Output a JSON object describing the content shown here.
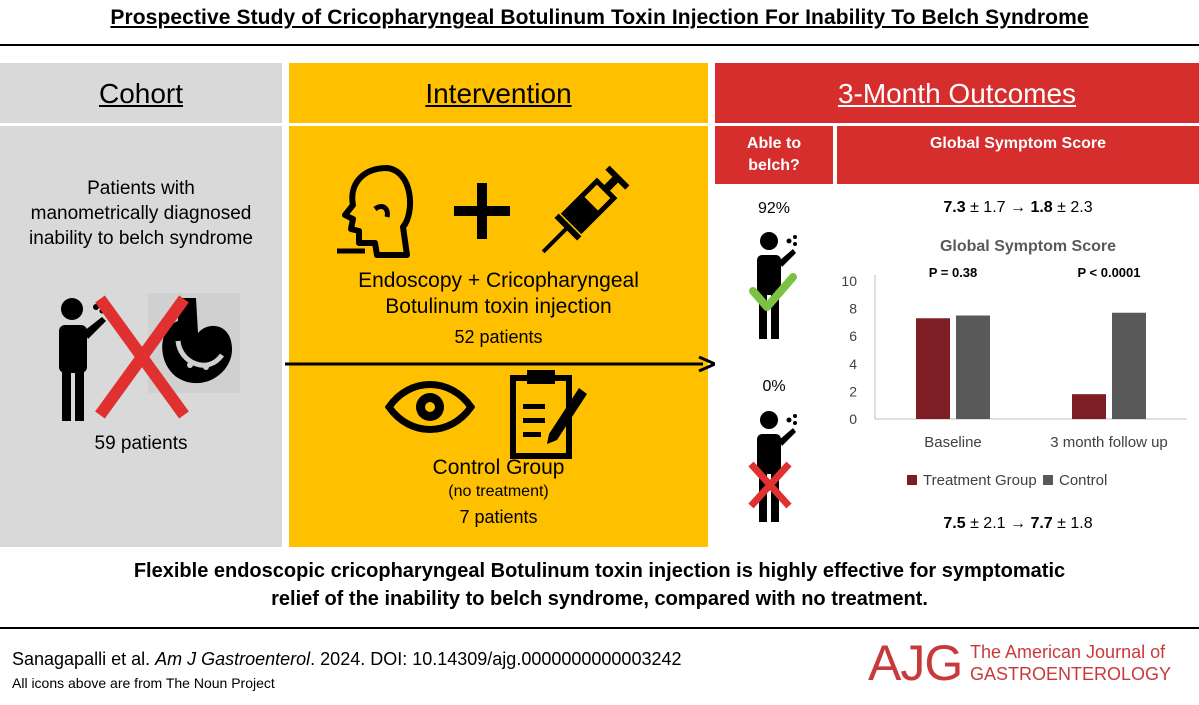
{
  "title": "Prospective Study of Cricopharyngeal Botulinum Toxin Injection For Inability To Belch Syndrome",
  "colors": {
    "cohort_bg": "#d9d9d9",
    "intervention_bg": "#ffc000",
    "outcomes_bg": "#d62d2d",
    "treatment": "#7f1d24",
    "control": "#595959",
    "check": "#7cc142",
    "cross": "#e03030"
  },
  "cohort": {
    "header": "Cohort",
    "desc_lines": [
      "Patients with",
      "manometrically diagnosed",
      "inability to belch syndrome"
    ],
    "count": "59 patients",
    "icons": [
      "belching-person-icon",
      "stomach-icon",
      "red-cross-icon"
    ]
  },
  "intervention": {
    "header": "Intervention",
    "treatment_lines": [
      "Endoscopy + Cricopharyngeal",
      "Botulinum toxin injection"
    ],
    "treatment_count": "52 patients",
    "control_label": "Control Group",
    "control_sub": "(no treatment)",
    "control_count": "7 patients",
    "icons": [
      "head-profile-icon",
      "plus-icon",
      "syringe-icon",
      "eye-icon",
      "clipboard-icon"
    ]
  },
  "outcomes": {
    "header": "3-Month Outcomes",
    "able_header_lines": [
      "Able to",
      "belch?"
    ],
    "gss_header": "Global Symptom Score",
    "treatment_pct": "92%",
    "control_pct": "0%",
    "treatment_score": {
      "before": "7.3",
      "before_sd": " ± 1.7 ",
      "after": "1.8",
      "after_sd": " ± 2.3"
    },
    "control_score": {
      "before": "7.5",
      "before_sd": " ± 2.1 ",
      "after": "7.7",
      "after_sd": " ± 1.8"
    }
  },
  "chart_data": {
    "type": "bar",
    "title": "Global Symptom Score",
    "categories": [
      "Baseline",
      "3 month follow up"
    ],
    "series": [
      {
        "name": "Treatment Group",
        "values": [
          7.3,
          1.8
        ]
      },
      {
        "name": "Control",
        "values": [
          7.5,
          7.7
        ]
      }
    ],
    "ylim": [
      0,
      10
    ],
    "yticks": [
      "0",
      "2",
      "4",
      "6",
      "8",
      "10"
    ],
    "annotations": [
      "P = 0.38",
      "P < 0.0001"
    ],
    "legend_position": "bottom",
    "grid": false
  },
  "conclusion_lines": [
    "Flexible endoscopic cricopharyngeal Botulinum toxin injection is highly effective for symptomatic",
    "relief of the inability to belch syndrome, compared with no treatment."
  ],
  "citation": {
    "authors": "Sanagapalli et al. ",
    "journal": "Am J Gastroenterol",
    "rest": ". 2024. DOI: 10.14309/ajg.0000000000003242"
  },
  "icons_note": "All icons above are from The Noun Project",
  "logo": {
    "mark": "AJG",
    "line1": "The American Journal of",
    "line2": "GASTROENTEROLOGY"
  }
}
